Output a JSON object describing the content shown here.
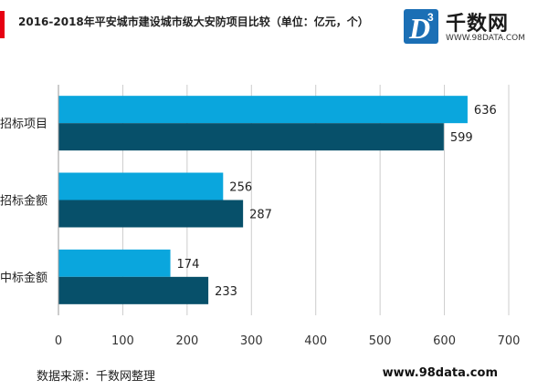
{
  "header": {
    "title": "2016-2018年平安城市建设城市级大安防项目比较（单位：亿元，个）"
  },
  "logo": {
    "mark_letter": "D",
    "mark_superscript": "3",
    "name": "千数网",
    "url": "WWW.98DATA.COM"
  },
  "footer": {
    "source": "数据来源：千数网整理",
    "website": "www.98data.com"
  },
  "colors": {
    "series_light": "#0aa6dd",
    "series_dark": "#07506a",
    "grid": "#cccccc",
    "accent": "#e60012",
    "logo_blue": "#1b6fb5"
  },
  "chart_data": {
    "type": "bar",
    "orientation": "horizontal",
    "categories": [
      "招标项目",
      "招标金额",
      "中标金额"
    ],
    "series": [
      {
        "values": [
          636,
          256,
          174
        ]
      },
      {
        "values": [
          599,
          287,
          233
        ]
      }
    ],
    "xlim": [
      0,
      700
    ],
    "xticks": [
      0,
      100,
      200,
      300,
      400,
      500,
      600,
      700
    ],
    "grid": true,
    "legend": "none"
  }
}
